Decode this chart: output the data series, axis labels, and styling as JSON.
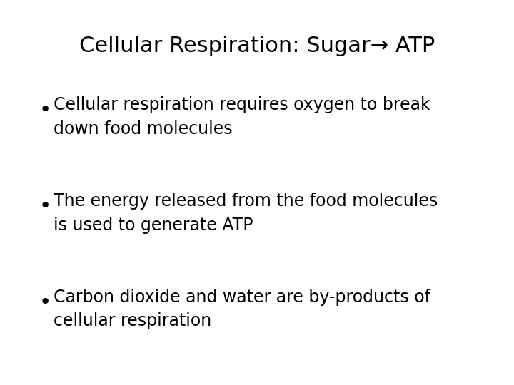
{
  "title_text": "Cellular Respiration: Sugar→ ATP",
  "bullet1": "Cellular respiration requires oxygen to break\ndown food molecules",
  "bullet2": "The energy released from the food molecules\nis used to generate ATP",
  "bullet3": "Carbon dioxide and water are by-products of\ncellular respiration",
  "bg_color": "#ffffff",
  "text_color": "#000000",
  "title_fontsize": 22,
  "bullet_fontsize": 17,
  "bullet_symbol": "•"
}
